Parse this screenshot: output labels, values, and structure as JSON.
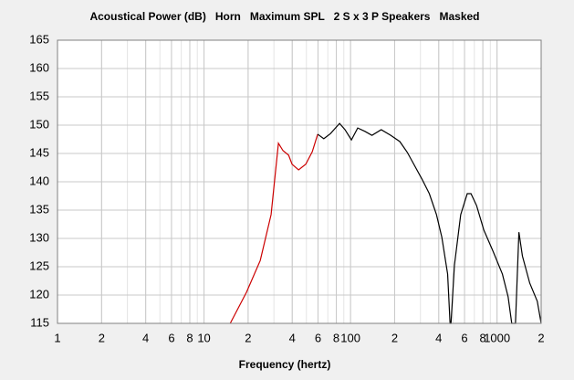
{
  "chart_data": {
    "type": "line",
    "title": "Acoustical Power (dB)   Horn   Maximum SPL   2 S x 3 P Speakers   Masked",
    "x_label": "Frequency (hertz)",
    "x_scale": "log",
    "grid": true,
    "xlim": [
      1,
      2000
    ],
    "ylim": [
      115,
      165
    ],
    "xticks": [
      1,
      2,
      4,
      6,
      8,
      10,
      {
        "value": 20,
        "label": "2"
      },
      {
        "value": 40,
        "label": "4"
      },
      {
        "value": 60,
        "label": "6"
      },
      {
        "value": 80,
        "label": "8"
      },
      100,
      {
        "value": 200,
        "label": "2"
      },
      {
        "value": 400,
        "label": "4"
      },
      {
        "value": 600,
        "label": "6"
      },
      {
        "value": 800,
        "label": "8"
      },
      1000,
      {
        "value": 2000,
        "label": "2"
      }
    ],
    "yticks": [
      115,
      120,
      125,
      130,
      135,
      140,
      145,
      150,
      155,
      160,
      165
    ],
    "x": [
      15.1,
      19.5,
      24.2,
      28.7,
      32.2,
      34.6,
      37.8,
      39.9,
      44.2,
      49.5,
      54.8,
      59.7,
      65.7,
      72.9,
      84.2,
      91.7,
      101.4,
      112,
      125.4,
      140,
      162,
      188,
      217,
      244,
      277,
      307,
      345,
      386,
      420,
      460,
      478,
      485,
      512,
      565,
      626,
      664,
      725,
      812,
      940,
      1088,
      1190,
      1260,
      1336,
      1410,
      1490,
      1672,
      1882,
      2000
    ],
    "series": [
      {
        "color": "#cc0000",
        "values": [
          115,
          120.5,
          126.1,
          134.2,
          146.8,
          145.5,
          144.7,
          143.1,
          142.1,
          143.1,
          145.3,
          148.4,
          null,
          null,
          null,
          null,
          null,
          null,
          null,
          null,
          null,
          null,
          null,
          null,
          null,
          null,
          null,
          null,
          null,
          null,
          null,
          null,
          null,
          null,
          null,
          null,
          null,
          null,
          null,
          null,
          null,
          null,
          null,
          null,
          null,
          null,
          null,
          null
        ]
      },
      {
        "color": "#000000",
        "values": [
          null,
          null,
          null,
          null,
          null,
          null,
          null,
          null,
          null,
          null,
          null,
          148.4,
          147.6,
          148.5,
          150.3,
          149.2,
          147.4,
          149.5,
          148.9,
          148.2,
          149.2,
          148.2,
          147.1,
          145.2,
          142.6,
          140.5,
          137.9,
          134.2,
          130.2,
          123.7,
          115,
          115,
          125.3,
          134.2,
          137.9,
          137.9,
          135.8,
          131.5,
          127.7,
          123.7,
          119.7,
          115,
          115,
          131.1,
          126.9,
          122.1,
          118.9,
          115
        ]
      }
    ]
  }
}
